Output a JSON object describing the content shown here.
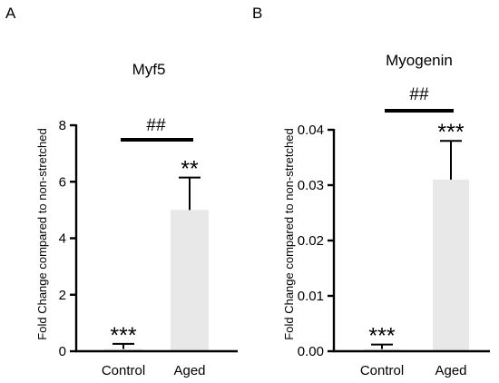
{
  "panels": [
    {
      "label": "A"
    },
    {
      "label": "B"
    }
  ],
  "chart_data": [
    {
      "type": "bar",
      "title": "Myf5",
      "xlabel": "",
      "ylabel": "Fold Change compared to non-stretched",
      "ylim": [
        0,
        8
      ],
      "yticks": [
        0,
        2,
        4,
        6,
        8
      ],
      "categories": [
        "Control",
        "Aged"
      ],
      "values": [
        0.08,
        5.0
      ],
      "errors": [
        0.18,
        1.15
      ],
      "significance": [
        "***",
        "**"
      ],
      "comparison": {
        "label": "##",
        "between": [
          "Control",
          "Aged"
        ]
      },
      "bar_colors": [
        "#e8e8e8",
        "#e8e8e8"
      ]
    },
    {
      "type": "bar",
      "title": "Myogenin",
      "xlabel": "",
      "ylabel": "Fold Change compared to non-stretched",
      "ylim": [
        0,
        0.04
      ],
      "yticks": [
        "0.00",
        "0.01",
        "0.02",
        "0.03",
        "0.04"
      ],
      "categories": [
        "Control",
        "Aged"
      ],
      "values": [
        0.0004,
        0.031
      ],
      "errors": [
        0.0008,
        0.007
      ],
      "significance": [
        "***",
        "***"
      ],
      "comparison": {
        "label": "##",
        "between": [
          "Control",
          "Aged"
        ]
      },
      "bar_colors": [
        "#e8e8e8",
        "#e8e8e8"
      ]
    }
  ]
}
